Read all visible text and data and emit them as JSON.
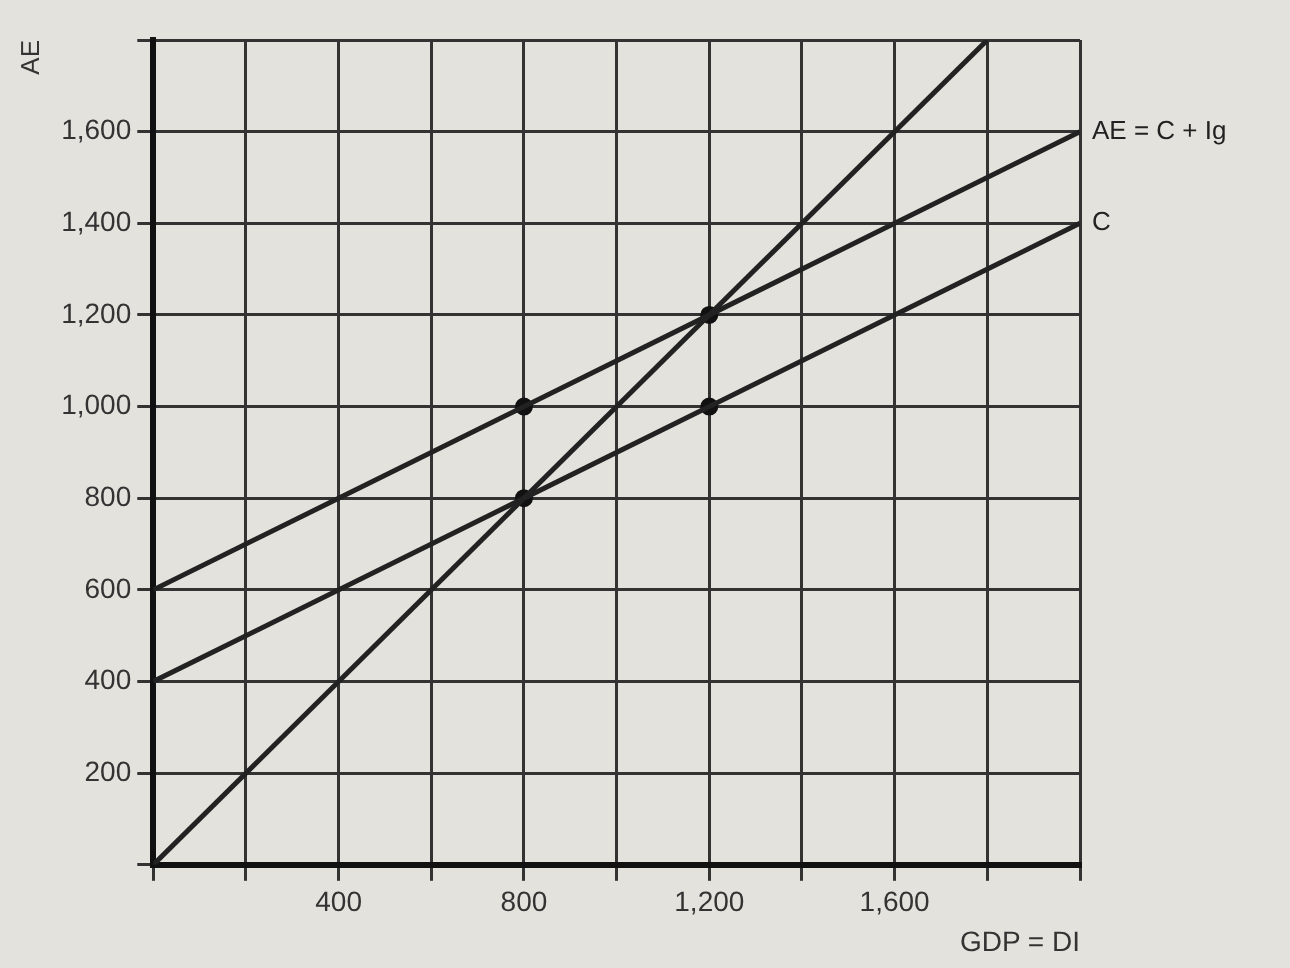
{
  "chart_data": {
    "type": "line",
    "xlabel": "GDP = DI",
    "ylabel": "AE",
    "xlim": [
      0,
      2000
    ],
    "ylim": [
      0,
      1800
    ],
    "xticks": [
      {
        "value": 0,
        "label": null
      },
      {
        "value": 200,
        "label": null
      },
      {
        "value": 400,
        "label": "400"
      },
      {
        "value": 600,
        "label": null
      },
      {
        "value": 800,
        "label": "800"
      },
      {
        "value": 1000,
        "label": null
      },
      {
        "value": 1200,
        "label": "1,200"
      },
      {
        "value": 1400,
        "label": null
      },
      {
        "value": 1600,
        "label": "1,600"
      },
      {
        "value": 1800,
        "label": null
      },
      {
        "value": 2000,
        "label": null
      }
    ],
    "yticks": [
      {
        "value": 0,
        "label": null
      },
      {
        "value": 200,
        "label": "200"
      },
      {
        "value": 400,
        "label": "400"
      },
      {
        "value": 600,
        "label": "600"
      },
      {
        "value": 800,
        "label": "800"
      },
      {
        "value": 1000,
        "label": "1,000"
      },
      {
        "value": 1200,
        "label": "1,200"
      },
      {
        "value": 1400,
        "label": "1,400"
      },
      {
        "value": 1600,
        "label": "1,600"
      },
      {
        "value": 1800,
        "label": null
      }
    ],
    "grid": true,
    "legend": false,
    "marker": "none",
    "line_style": "solid",
    "series": [
      {
        "color": "#222222",
        "x": [
          0,
          1800
        ],
        "values": [
          0,
          1800
        ]
      },
      {
        "name": "AE = C + Ig",
        "color": "#222222",
        "x": [
          0,
          2000
        ],
        "values": [
          600,
          1600
        ]
      },
      {
        "name": "C",
        "color": "#222222",
        "x": [
          0,
          2000
        ],
        "values": [
          400,
          1400
        ]
      },
      {
        "type": "scatter",
        "marker": "circle",
        "color": "#111111",
        "x": [
          800,
          800,
          1200,
          1200
        ],
        "values": [
          1000,
          800,
          1000,
          1200
        ]
      }
    ]
  }
}
